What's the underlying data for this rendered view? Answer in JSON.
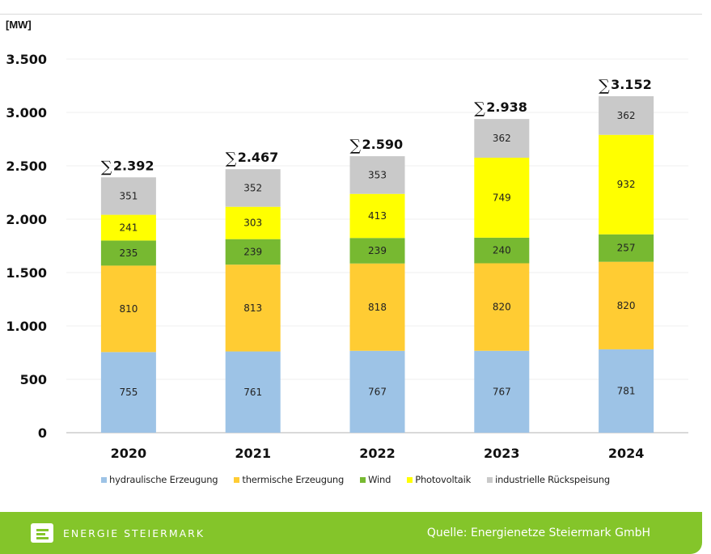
{
  "chart_data": {
    "type": "bar",
    "stacked": true,
    "title": "",
    "ylabel": "[MW]",
    "xlabel": "",
    "ylim": [
      0,
      3500
    ],
    "yticks": [
      0,
      500,
      1000,
      1500,
      2000,
      2500,
      3000,
      3500
    ],
    "ytick_labels": [
      "0",
      "500",
      "1.000",
      "1.500",
      "2.000",
      "2.500",
      "3.000",
      "3.500"
    ],
    "grid": true,
    "legend_position": "bottom",
    "categories": [
      "2020",
      "2021",
      "2022",
      "2023",
      "2024"
    ],
    "series": [
      {
        "name": "hydraulische Erzeugung",
        "color": "#9dc3e6",
        "values": [
          755,
          761,
          767,
          767,
          781
        ]
      },
      {
        "name": "thermische Erzeugung",
        "color": "#ffcc33",
        "values": [
          810,
          813,
          818,
          820,
          820
        ]
      },
      {
        "name": "Wind",
        "color": "#77b931",
        "values": [
          235,
          239,
          239,
          240,
          257
        ]
      },
      {
        "name": "Photovoltaik",
        "color": "#ffff00",
        "values": [
          241,
          303,
          413,
          749,
          932
        ]
      },
      {
        "name": "industrielle Rückspeisung",
        "color": "#c9c9c9",
        "values": [
          351,
          352,
          353,
          362,
          362
        ]
      }
    ],
    "totals": [
      2392,
      2467,
      2590,
      2938,
      3152
    ],
    "total_labels": [
      "2.392",
      "2.467",
      "2.590",
      "2.938",
      "3.152"
    ],
    "total_symbol": "∑"
  },
  "footer": {
    "brand": "ENERGIE STEIERMARK",
    "source": "Quelle: Energienetze Steiermark GmbH",
    "color": "#84c52a"
  }
}
